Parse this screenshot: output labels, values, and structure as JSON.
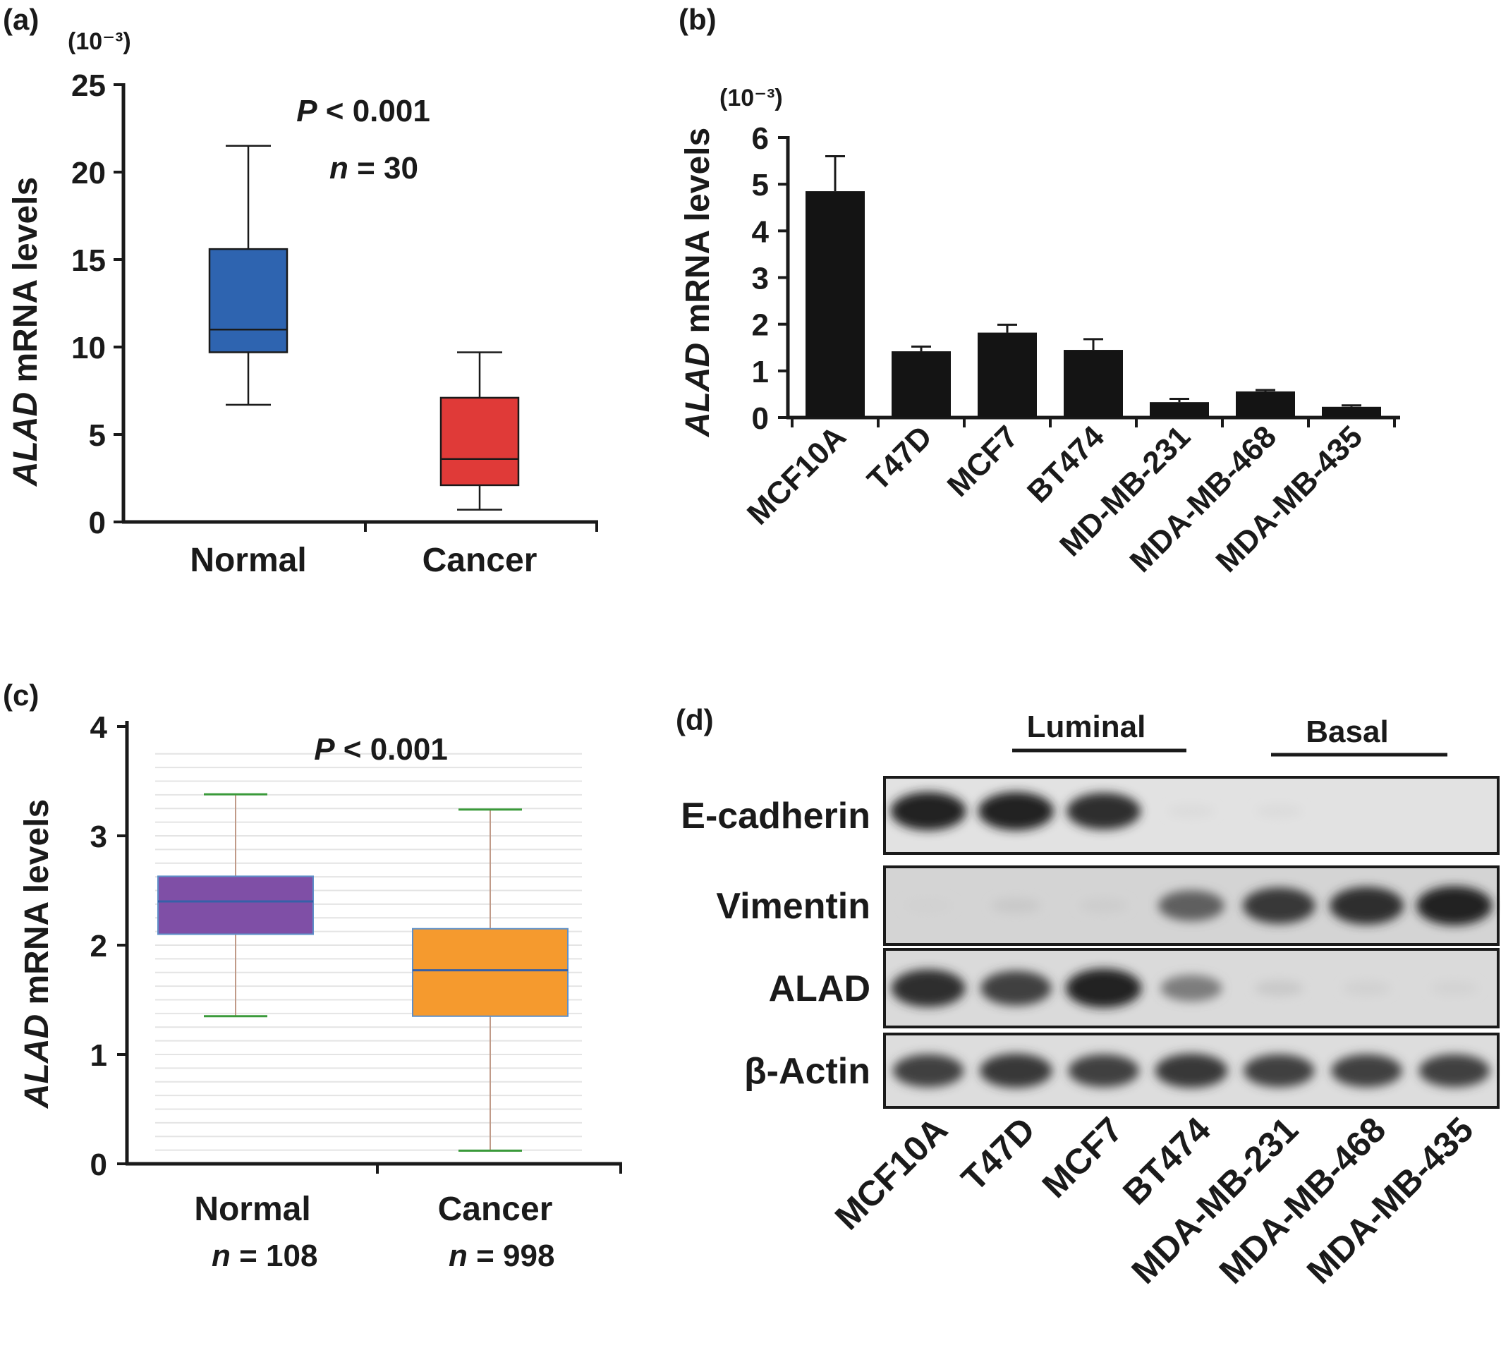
{
  "colors": {
    "normal_a": "#2E64B0",
    "cancer_a": "#E03A38",
    "bars_b": "#141414",
    "normal_c": "#7F4FA6",
    "cancer_c": "#F59A2E",
    "median_c": "#3660A8",
    "whisker_c": "#C09A88",
    "cap_c": "#3A9A3A",
    "grid_c": "#E4E4E4"
  },
  "chart_data": [
    {
      "panel": "(a)",
      "type": "box",
      "ylabel_italic": "ALAD",
      "ylabel_rest": " mRNA levels",
      "yscale": "(10⁻³)",
      "ylim": [
        0,
        25
      ],
      "yticks": [
        "0",
        "5",
        "10",
        "15",
        "20",
        "25"
      ],
      "categories": [
        "Normal",
        "Cancer"
      ],
      "boxes": [
        {
          "name": "Normal",
          "min": 6.7,
          "q1": 9.7,
          "median": 11.0,
          "q3": 15.6,
          "max": 21.5
        },
        {
          "name": "Cancer",
          "min": 0.7,
          "q1": 2.1,
          "median": 3.6,
          "q3": 7.1,
          "max": 9.7
        }
      ],
      "annot_p_italic": "P",
      "annot_p_rest": " < 0.001",
      "annot_n_italic": "n",
      "annot_n_rest": " = 30"
    },
    {
      "panel": "(b)",
      "type": "bar",
      "ylabel_italic": "ALAD",
      "ylabel_rest": " mRNA levels",
      "yscale": "(10⁻³)",
      "ylim": [
        0,
        6
      ],
      "yticks": [
        "0",
        "1",
        "2",
        "3",
        "4",
        "5",
        "6"
      ],
      "categories": [
        "MCF10A",
        "T47D",
        "MCF7",
        "BT474",
        "MD-MB-231",
        "MDA-MB-468",
        "MDA-MB-435"
      ],
      "values": [
        4.85,
        1.42,
        1.82,
        1.45,
        0.33,
        0.56,
        0.23
      ],
      "errors": [
        0.75,
        0.1,
        0.17,
        0.23,
        0.07,
        0.03,
        0.03
      ]
    },
    {
      "panel": "(c)",
      "type": "box",
      "ylabel_italic": "ALAD",
      "ylabel_rest": " mRNA levels",
      "ylim": [
        0,
        4
      ],
      "yticks": [
        "0",
        "1",
        "2",
        "3",
        "4"
      ],
      "categories": [
        "Normal",
        "Cancer"
      ],
      "n_labels": [
        {
          "italic": "n",
          "rest": " = 108"
        },
        {
          "italic": "n",
          "rest": " = 998"
        }
      ],
      "boxes": [
        {
          "name": "Normal",
          "min": 1.35,
          "q1": 2.1,
          "median": 2.4,
          "q3": 2.63,
          "max": 3.38
        },
        {
          "name": "Cancer",
          "min": 0.12,
          "q1": 1.35,
          "median": 1.77,
          "q3": 2.15,
          "max": 3.24
        }
      ],
      "grid": true,
      "annot_p_italic": "P",
      "annot_p_rest": " < 0.001"
    }
  ],
  "panel_d": {
    "panel": "(d)",
    "group_labels": [
      "Luminal",
      "Basal"
    ],
    "rows": [
      "E-cadherin",
      "Vimentin",
      "ALAD",
      "β-Actin"
    ],
    "lanes": [
      "MCF10A",
      "T47D",
      "MCF7",
      "BT474",
      "MDA-MB-231",
      "MDA-MB-468",
      "MDA-MB-435"
    ],
    "band_intensity": [
      [
        0.95,
        0.95,
        0.9,
        0.03,
        0.03,
        0.0,
        0.0
      ],
      [
        0.08,
        0.12,
        0.1,
        0.65,
        0.85,
        0.9,
        0.95
      ],
      [
        0.9,
        0.8,
        0.95,
        0.5,
        0.12,
        0.08,
        0.07
      ],
      [
        0.8,
        0.85,
        0.8,
        0.85,
        0.8,
        0.8,
        0.8
      ]
    ]
  }
}
